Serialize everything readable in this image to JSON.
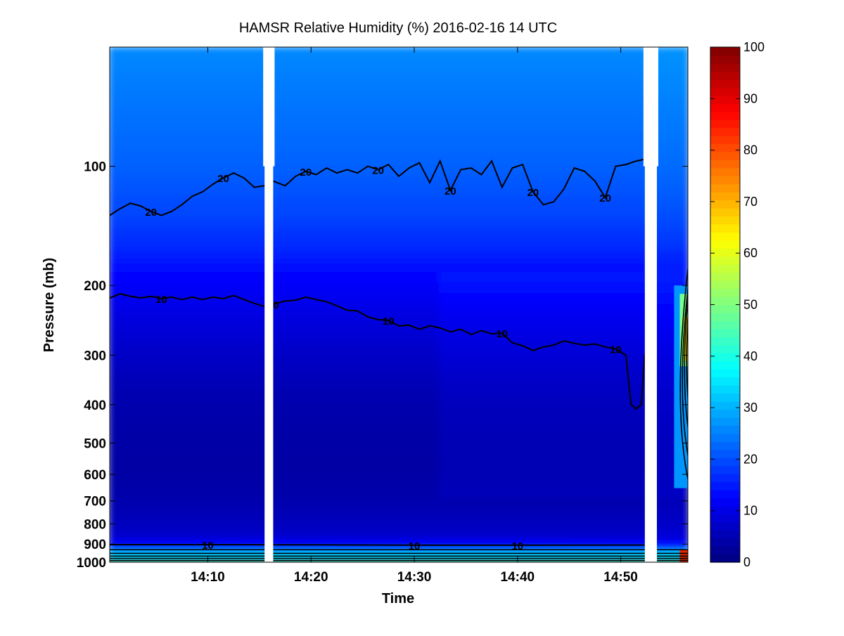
{
  "chart_data": {
    "type": "heatmap",
    "title": "HAMSR  Relative Humidity (%) 2016-02-16 14 UTC",
    "xlabel": "Time",
    "ylabel": "Pressure (mb)",
    "x_scale": "time",
    "y_scale": "log",
    "y_direction": "descending-upward",
    "x_range": [
      "14:00:30",
      "14:56:30"
    ],
    "ylim": [
      50,
      1000
    ],
    "x_ticks": [
      "14:10",
      "14:20",
      "14:30",
      "14:40",
      "14:50"
    ],
    "y_ticks": [
      100,
      200,
      300,
      400,
      500,
      600,
      700,
      800,
      900,
      1000
    ],
    "colorbar": {
      "colormap": "jet",
      "range": [
        0,
        100
      ],
      "ticks": [
        0,
        10,
        20,
        30,
        40,
        50,
        60,
        70,
        80,
        90,
        100
      ]
    },
    "data_gaps": [
      {
        "start": "14:15:30",
        "end": "14:16:20"
      },
      {
        "start": "14:52:20",
        "end": "14:53:30"
      }
    ],
    "contours": [
      {
        "level": 20,
        "labels": [
          "20",
          "20",
          "20",
          "20",
          "20",
          "20",
          "20"
        ],
        "points": [
          [
            "14:00:30",
            133
          ],
          [
            "14:01:30",
            128
          ],
          [
            "14:02:30",
            124
          ],
          [
            "14:03:30",
            126
          ],
          [
            "14:04:30",
            130
          ],
          [
            "14:05:30",
            133
          ],
          [
            "14:06:30",
            130
          ],
          [
            "14:07:30",
            125
          ],
          [
            "14:08:30",
            119
          ],
          [
            "14:09:30",
            116
          ],
          [
            "14:10:30",
            111
          ],
          [
            "14:11:30",
            107
          ],
          [
            "14:12:30",
            104
          ],
          [
            "14:13:30",
            107
          ],
          [
            "14:14:30",
            113
          ],
          [
            "14:15:30",
            112
          ],
          [
            "14:16:20",
            109
          ],
          [
            "14:17:30",
            112
          ],
          [
            "14:18:30",
            106
          ],
          [
            "14:19:30",
            103
          ],
          [
            "14:20:30",
            105
          ],
          [
            "14:21:30",
            101
          ],
          [
            "14:22:30",
            104
          ],
          [
            "14:23:30",
            102
          ],
          [
            "14:24:30",
            104
          ],
          [
            "14:25:30",
            100
          ],
          [
            "14:26:30",
            102
          ],
          [
            "14:27:30",
            99
          ],
          [
            "14:28:30",
            106
          ],
          [
            "14:29:30",
            101
          ],
          [
            "14:30:30",
            98
          ],
          [
            "14:31:30",
            110
          ],
          [
            "14:32:30",
            97
          ],
          [
            "14:33:30",
            115
          ],
          [
            "14:34:30",
            102
          ],
          [
            "14:35:30",
            101
          ],
          [
            "14:36:30",
            105
          ],
          [
            "14:37:30",
            97
          ],
          [
            "14:38:30",
            113
          ],
          [
            "14:39:30",
            101
          ],
          [
            "14:40:30",
            99
          ],
          [
            "14:41:30",
            116
          ],
          [
            "14:42:30",
            125
          ],
          [
            "14:43:30",
            123
          ],
          [
            "14:44:30",
            114
          ],
          [
            "14:45:30",
            101
          ],
          [
            "14:46:30",
            103
          ],
          [
            "14:47:30",
            109
          ],
          [
            "14:48:30",
            120
          ],
          [
            "14:49:30",
            100
          ],
          [
            "14:50:30",
            99
          ],
          [
            "14:51:30",
            97
          ],
          [
            "14:52:20",
            96
          ]
        ]
      },
      {
        "level": 10,
        "labels": [
          "10",
          "10",
          "10",
          "10",
          "10"
        ],
        "points": [
          [
            "14:00:30",
            215
          ],
          [
            "14:01:30",
            210
          ],
          [
            "14:02:30",
            213
          ],
          [
            "14:03:30",
            215
          ],
          [
            "14:04:30",
            213
          ],
          [
            "14:05:30",
            216
          ],
          [
            "14:06:30",
            214
          ],
          [
            "14:07:30",
            217
          ],
          [
            "14:08:30",
            214
          ],
          [
            "14:09:30",
            217
          ],
          [
            "14:10:30",
            214
          ],
          [
            "14:11:30",
            216
          ],
          [
            "14:12:30",
            212
          ],
          [
            "14:13:30",
            217
          ],
          [
            "14:14:30",
            222
          ],
          [
            "14:15:30",
            226
          ],
          [
            "14:16:20",
            223
          ],
          [
            "14:17:30",
            219
          ],
          [
            "14:18:30",
            218
          ],
          [
            "14:19:30",
            214
          ],
          [
            "14:20:30",
            217
          ],
          [
            "14:21:30",
            220
          ],
          [
            "14:22:30",
            225
          ],
          [
            "14:23:30",
            231
          ],
          [
            "14:24:30",
            232
          ],
          [
            "14:25:30",
            240
          ],
          [
            "14:26:30",
            244
          ],
          [
            "14:27:30",
            245
          ],
          [
            "14:28:30",
            253
          ],
          [
            "14:29:30",
            252
          ],
          [
            "14:30:30",
            258
          ],
          [
            "14:31:30",
            253
          ],
          [
            "14:32:30",
            256
          ],
          [
            "14:33:30",
            262
          ],
          [
            "14:34:30",
            258
          ],
          [
            "14:35:30",
            266
          ],
          [
            "14:36:30",
            260
          ],
          [
            "14:37:30",
            265
          ],
          [
            "14:38:30",
            264
          ],
          [
            "14:39:30",
            279
          ],
          [
            "14:40:30",
            284
          ],
          [
            "14:41:30",
            292
          ],
          [
            "14:42:30",
            286
          ],
          [
            "14:43:30",
            283
          ],
          [
            "14:44:30",
            276
          ],
          [
            "14:45:30",
            280
          ],
          [
            "14:46:30",
            283
          ],
          [
            "14:47:30",
            281
          ],
          [
            "14:48:30",
            286
          ],
          [
            "14:49:30",
            289
          ],
          [
            "14:50:30",
            300
          ],
          [
            "14:51:00",
            400
          ],
          [
            "14:51:30",
            410
          ],
          [
            "14:52:00",
            400
          ],
          [
            "14:52:20",
            297
          ]
        ]
      },
      {
        "level": 10,
        "labels": [
          "10",
          "10",
          "10"
        ],
        "points": [
          [
            "14:00:30",
            903
          ],
          [
            "14:10:00",
            903
          ],
          [
            "14:20:00",
            904
          ],
          [
            "14:30:00",
            906
          ],
          [
            "14:40:00",
            906
          ],
          [
            "14:52:20",
            905
          ]
        ]
      }
    ]
  }
}
